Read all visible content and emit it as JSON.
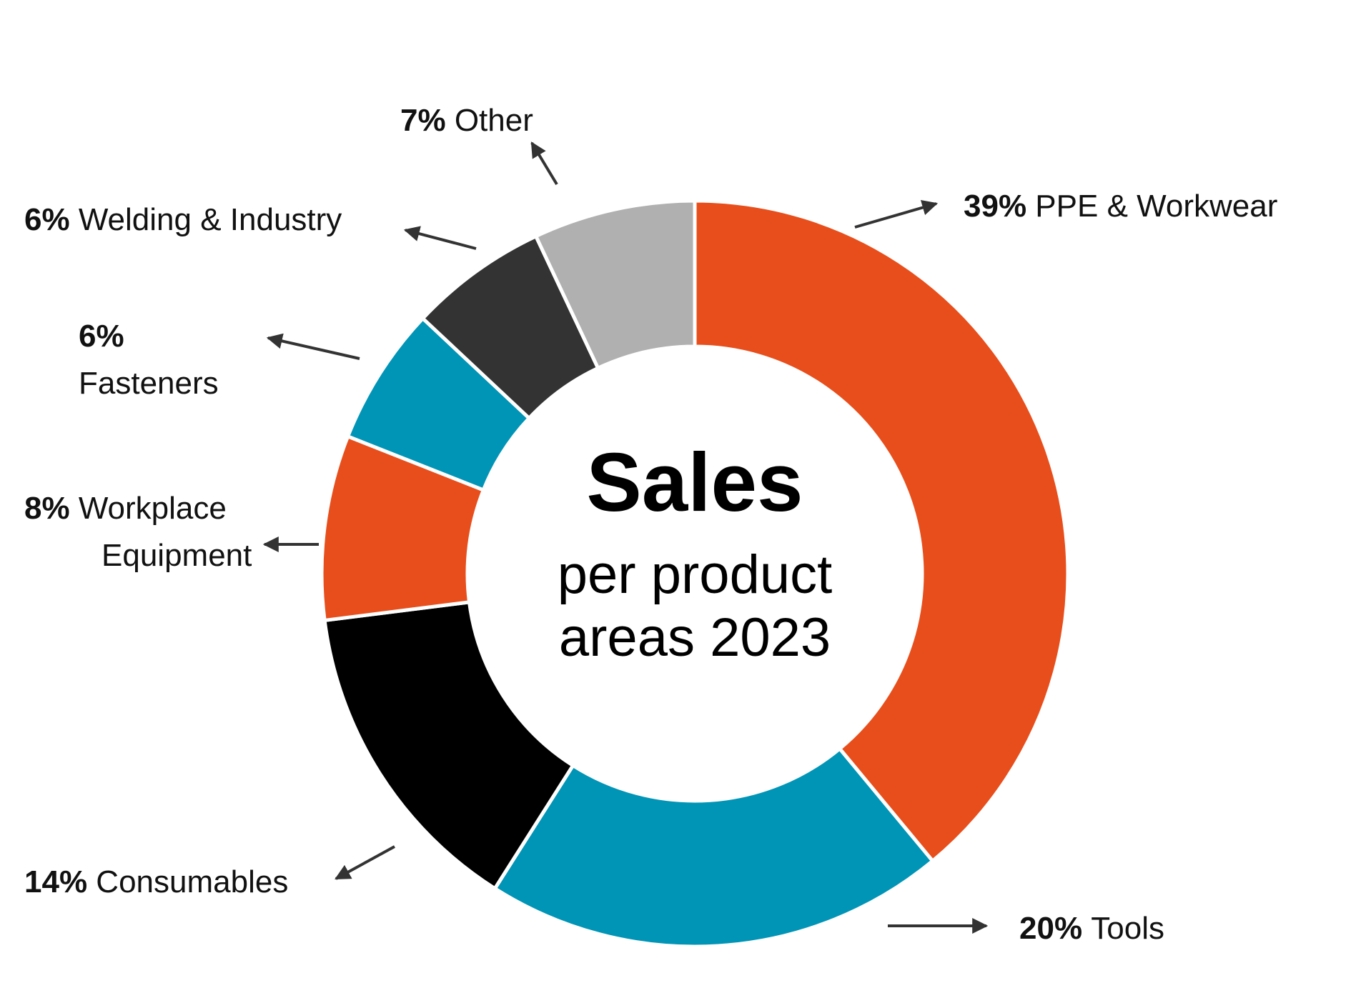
{
  "chart_data": {
    "type": "pie",
    "title": "Sales",
    "subtitle": [
      "per product",
      "areas 2023"
    ],
    "categories": [
      "PPE & Workwear",
      "Tools",
      "Consumables",
      "Workplace Equipment",
      "Fasteners",
      "Welding & Industry",
      "Other"
    ],
    "values": [
      39,
      20,
      14,
      8,
      6,
      6,
      7
    ],
    "value_labels": [
      "39%",
      "20%",
      "14%",
      "8%",
      "6%",
      "6%",
      "7%"
    ],
    "label_lines": [
      [
        "PPE & Workwear"
      ],
      [
        "Tools"
      ],
      [
        "Consumables"
      ],
      [
        "Workplace",
        "Equipment"
      ],
      [
        "",
        "Fasteners"
      ],
      [
        "Welding & Industry"
      ],
      [
        "Other"
      ]
    ],
    "colors": [
      "#e84e1b",
      "#0095b6",
      "#000000",
      "#e84e1b",
      "#0095b6",
      "#333333",
      "#b0b0b0"
    ],
    "slice_border_color": "#ffffff",
    "arrow_color": "#333333",
    "donut": true
  }
}
